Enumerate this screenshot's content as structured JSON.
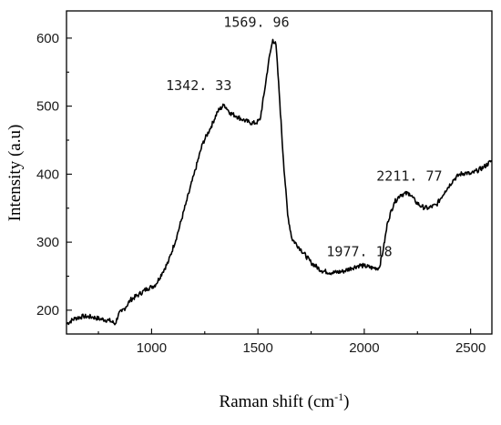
{
  "chart_data": {
    "type": "line",
    "title": "",
    "xlabel": "Raman shift (cm",
    "xlabel_superscript": "-1",
    "xlabel_suffix": ")",
    "ylabel": "Intensity (a.u)",
    "xlim": [
      600,
      2600
    ],
    "ylim": [
      165,
      640
    ],
    "x_ticks": [
      1000,
      1500,
      2000,
      2500
    ],
    "y_ticks": [
      200,
      300,
      400,
      500,
      600
    ],
    "grid": false,
    "series": [
      {
        "x": [
          600,
          640,
          680,
          720,
          760,
          800,
          830,
          845,
          860,
          880,
          900,
          940,
          980,
          1000,
          1020,
          1050,
          1080,
          1120,
          1160,
          1200,
          1240,
          1280,
          1310,
          1342,
          1370,
          1400,
          1430,
          1460,
          1490,
          1510,
          1530,
          1550,
          1570,
          1585,
          1600,
          1620,
          1640,
          1660,
          1700,
          1750,
          1800,
          1850,
          1900,
          1940,
          1977,
          2000,
          2040,
          2070,
          2090,
          2110,
          2140,
          2170,
          2212,
          2240,
          2270,
          2300,
          2340,
          2380,
          2420,
          2450,
          2480,
          2500,
          2530,
          2560,
          2600
        ],
        "y": [
          180,
          188,
          191,
          190,
          187,
          185,
          180,
          195,
          198,
          205,
          215,
          223,
          232,
          234,
          238,
          255,
          272,
          310,
          355,
          400,
          445,
          470,
          492,
          502,
          490,
          485,
          480,
          476,
          475,
          480,
          520,
          565,
          598,
          590,
          520,
          420,
          340,
          305,
          290,
          270,
          258,
          255,
          257,
          262,
          266,
          265,
          262,
          262,
          290,
          330,
          358,
          370,
          372,
          360,
          352,
          350,
          355,
          375,
          392,
          400,
          402,
          400,
          405,
          410,
          420
        ]
      }
    ],
    "annotations": [
      {
        "text": "1342. 33",
        "x": 1342,
        "y": 502
      },
      {
        "text": "1569. 96",
        "x": 1570,
        "y": 598
      },
      {
        "text": "1977. 18",
        "x": 1977,
        "y": 266
      },
      {
        "text": "2211. 77",
        "x": 2212,
        "y": 372
      }
    ]
  }
}
